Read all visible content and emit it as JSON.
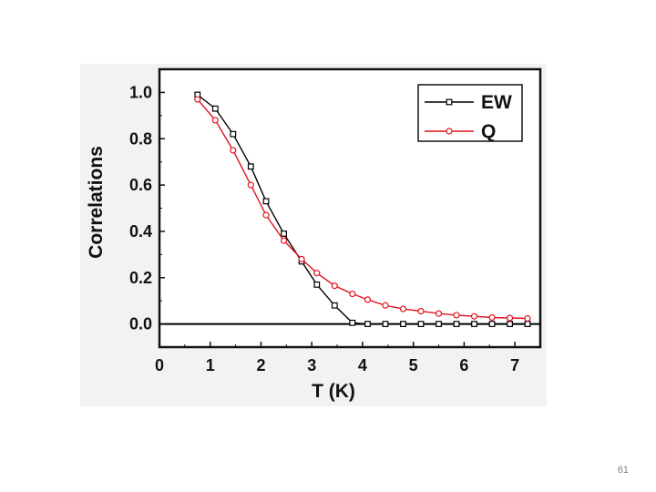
{
  "slide": {
    "page_number": "61"
  },
  "chart_data": {
    "type": "line",
    "title": "",
    "xlabel": "T (K)",
    "ylabel": "Correlations",
    "xlim": [
      0,
      7.5
    ],
    "ylim": [
      -0.1,
      1.1
    ],
    "xticks": [
      0,
      1,
      2,
      3,
      4,
      5,
      6,
      7
    ],
    "xtick_labels": [
      "0",
      "1",
      "2",
      "3",
      "4",
      "5",
      "6",
      "7"
    ],
    "yticks": [
      0.0,
      0.2,
      0.4,
      0.6,
      0.8,
      1.0
    ],
    "ytick_labels": [
      "0.0",
      "0.2",
      "0.4",
      "0.6",
      "0.8",
      "1.0"
    ],
    "grid": false,
    "zero_line": true,
    "legend_position": "top-right",
    "series": [
      {
        "name": "EW",
        "color": "#000000",
        "marker": "square",
        "x": [
          0.75,
          1.1,
          1.45,
          1.8,
          2.1,
          2.45,
          2.8,
          3.1,
          3.45,
          3.8,
          4.1,
          4.45,
          4.8,
          5.15,
          5.5,
          5.85,
          6.2,
          6.55,
          6.9,
          7.25
        ],
        "y": [
          0.99,
          0.93,
          0.82,
          0.68,
          0.53,
          0.39,
          0.27,
          0.17,
          0.08,
          0.005,
          0.0,
          0.0,
          0.0,
          0.0,
          0.0,
          0.0,
          0.0,
          0.0,
          0.0,
          0.0
        ]
      },
      {
        "name": "Q",
        "color": "#e0141e",
        "marker": "circle",
        "x": [
          0.75,
          1.1,
          1.45,
          1.8,
          2.1,
          2.45,
          2.8,
          3.1,
          3.45,
          3.8,
          4.1,
          4.45,
          4.8,
          5.15,
          5.5,
          5.85,
          6.2,
          6.55,
          6.9,
          7.25
        ],
        "y": [
          0.97,
          0.88,
          0.75,
          0.6,
          0.47,
          0.36,
          0.28,
          0.22,
          0.165,
          0.13,
          0.105,
          0.08,
          0.065,
          0.055,
          0.045,
          0.038,
          0.033,
          0.028,
          0.026,
          0.024
        ]
      }
    ]
  }
}
